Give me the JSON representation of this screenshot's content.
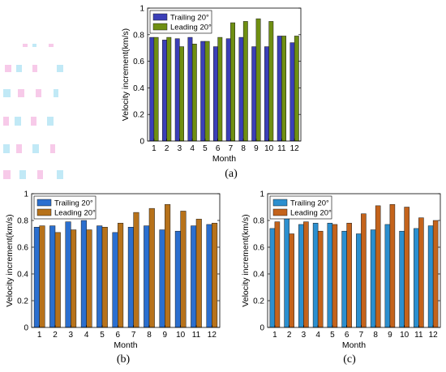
{
  "chart_data": [
    {
      "panel": "(a)",
      "type": "bar",
      "xlabel": "Month",
      "ylabel": "Velocity increment(km/s)",
      "ylim": [
        0,
        1
      ],
      "yticks": [
        "0",
        "0.2",
        "0.4",
        "0.6",
        "0.8",
        "1"
      ],
      "categories": [
        "1",
        "2",
        "3",
        "4",
        "5",
        "6",
        "7",
        "8",
        "9",
        "10",
        "11",
        "12"
      ],
      "legend_position": "top-left",
      "colors": [
        "#3b3fb8",
        "#6f8f12"
      ],
      "series": [
        {
          "name": "Trailing 20°",
          "values": [
            0.78,
            0.76,
            0.77,
            0.78,
            0.75,
            0.71,
            0.77,
            0.78,
            0.71,
            0.71,
            0.79,
            0.74
          ]
        },
        {
          "name": "Leading 20°",
          "values": [
            0.78,
            0.78,
            0.71,
            0.73,
            0.75,
            0.78,
            0.89,
            0.9,
            0.92,
            0.9,
            0.79,
            0.79
          ]
        }
      ]
    },
    {
      "panel": "(b)",
      "type": "bar",
      "xlabel": "Month",
      "ylabel": "Velocity increment(km/s)",
      "ylim": [
        0,
        1
      ],
      "yticks": [
        "0",
        "0.2",
        "0.4",
        "0.6",
        "0.8",
        "1"
      ],
      "categories": [
        "1",
        "2",
        "3",
        "4",
        "5",
        "6",
        "7",
        "8",
        "9",
        "10",
        "11",
        "12"
      ],
      "legend_position": "top-left",
      "colors": [
        "#2b6fcf",
        "#b7721a"
      ],
      "series": [
        {
          "name": "Trailing 20°",
          "values": [
            0.75,
            0.76,
            0.79,
            0.8,
            0.76,
            0.71,
            0.75,
            0.76,
            0.73,
            0.72,
            0.76,
            0.77
          ]
        },
        {
          "name": "Leading 20°",
          "values": [
            0.76,
            0.71,
            0.73,
            0.73,
            0.75,
            0.78,
            0.86,
            0.89,
            0.92,
            0.87,
            0.81,
            0.78
          ]
        }
      ]
    },
    {
      "panel": "(c)",
      "type": "bar",
      "xlabel": "Month",
      "ylabel": "Velocity increment(km/s)",
      "ylim": [
        0,
        1
      ],
      "yticks": [
        "0",
        "0.2",
        "0.4",
        "0.6",
        "0.8",
        "1"
      ],
      "categories": [
        "1",
        "2",
        "3",
        "4",
        "5",
        "6",
        "7",
        "8",
        "9",
        "10",
        "11",
        "12"
      ],
      "legend_position": "top-left",
      "colors": [
        "#2b8fcf",
        "#c4631b"
      ],
      "series": [
        {
          "name": "Trailing 20°",
          "values": [
            0.74,
            0.82,
            0.77,
            0.78,
            0.78,
            0.72,
            0.7,
            0.73,
            0.77,
            0.72,
            0.74,
            0.76
          ]
        },
        {
          "name": "Leading 20°",
          "values": [
            0.79,
            0.7,
            0.79,
            0.72,
            0.77,
            0.78,
            0.85,
            0.91,
            0.92,
            0.9,
            0.82,
            0.8
          ]
        }
      ]
    }
  ]
}
